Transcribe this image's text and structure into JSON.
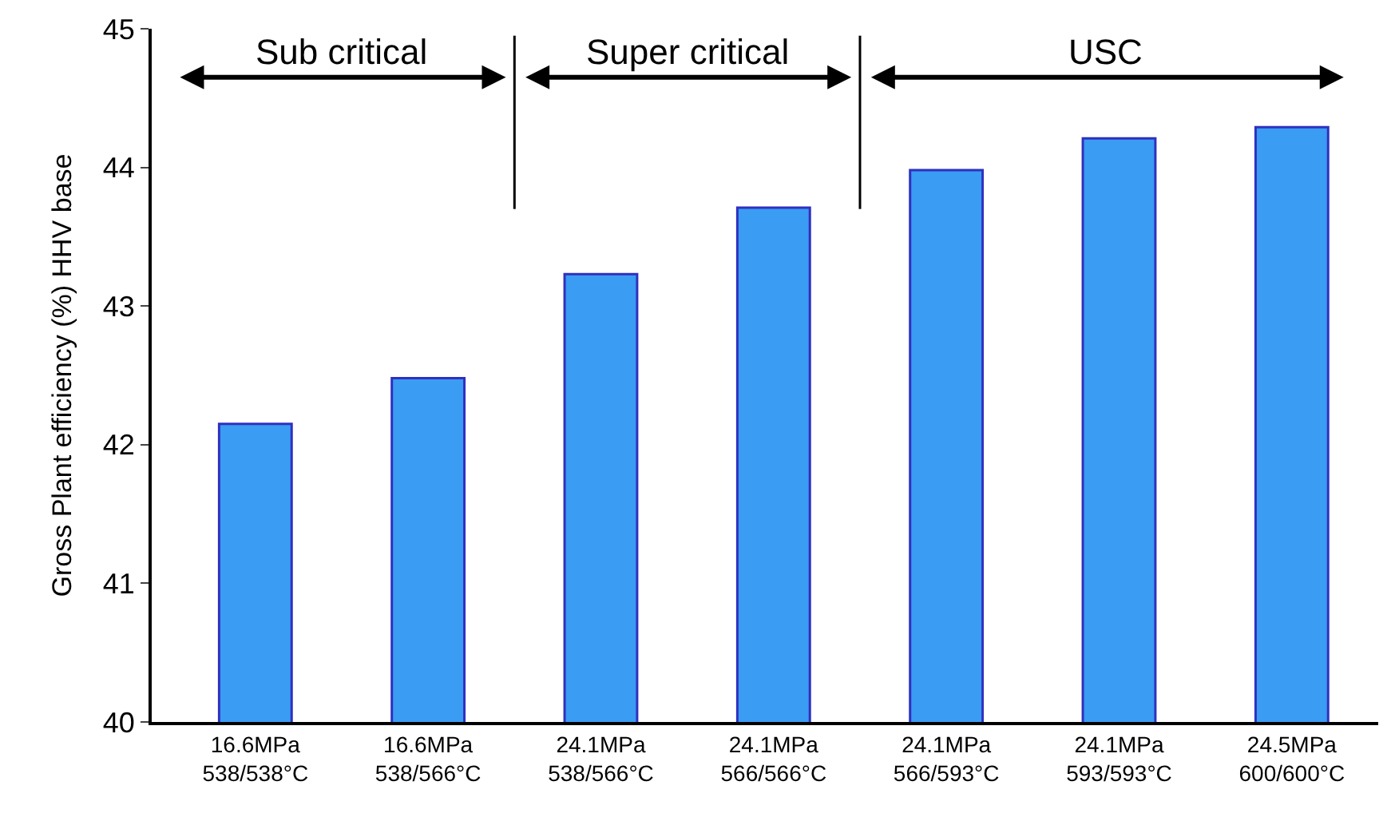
{
  "chart_data": {
    "type": "bar",
    "ylabel": "Gross Plant efficiency (%) HHV base",
    "categories": [
      "16.6MPa\n538/538°C",
      "16.6MPa\n538/566°C",
      "24.1MPa\n538/566°C",
      "24.1MPa\n566/566°C",
      "24.1MPa\n566/593°C",
      "24.1MPa\n593/593°C",
      "24.5MPa\n600/600°C"
    ],
    "values": [
      42.15,
      42.48,
      43.23,
      43.71,
      43.98,
      44.21,
      44.29
    ],
    "color": "#3a9cf2",
    "ylim": [
      40,
      45
    ],
    "yticks": [
      40,
      41,
      42,
      43,
      44,
      45
    ],
    "annotations": [
      "Sub critical",
      "Super critical",
      "USC"
    ]
  }
}
